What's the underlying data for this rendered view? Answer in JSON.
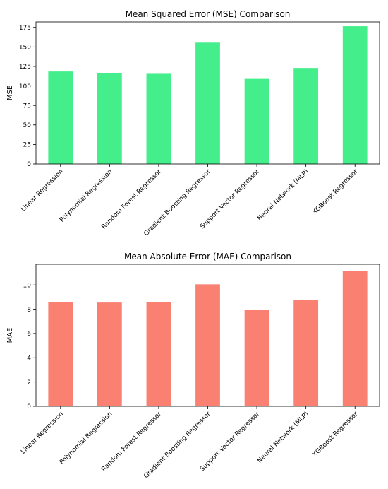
{
  "chart_data": [
    {
      "type": "bar",
      "title": "Mean Squared Error (MSE) Comparison",
      "xlabel": "",
      "ylabel": "MSE",
      "categories": [
        "Linear Regression",
        "Polynomial Regression",
        "Random Forest Regressor",
        "Gradient Boosting Regressor",
        "Support Vector Regressor",
        "Neural Network (MLP)",
        "XGBoost Regressor"
      ],
      "values": [
        118.5,
        116.5,
        115.5,
        155.5,
        109.0,
        123.0,
        176.5
      ],
      "ylim": [
        0,
        182
      ],
      "yticks": [
        0,
        25,
        50,
        75,
        100,
        125,
        150,
        175
      ],
      "color": "#44ee8a",
      "grid": false,
      "legend": "none"
    },
    {
      "type": "bar",
      "title": "Mean Absolute Error (MAE) Comparison",
      "xlabel": "",
      "ylabel": "MAE",
      "categories": [
        "Linear Regression",
        "Polynomial Regression",
        "Random Forest Regressor",
        "Gradient Boosting Regressor",
        "Support Vector Regressor",
        "Neural Network (MLP)",
        "XGBoost Regressor"
      ],
      "values": [
        8.6,
        8.55,
        8.6,
        10.05,
        7.95,
        8.75,
        11.15
      ],
      "ylim": [
        0,
        11.7
      ],
      "yticks": [
        0,
        2,
        4,
        6,
        8,
        10
      ],
      "color": "#fa8072",
      "grid": false,
      "legend": "none"
    }
  ]
}
